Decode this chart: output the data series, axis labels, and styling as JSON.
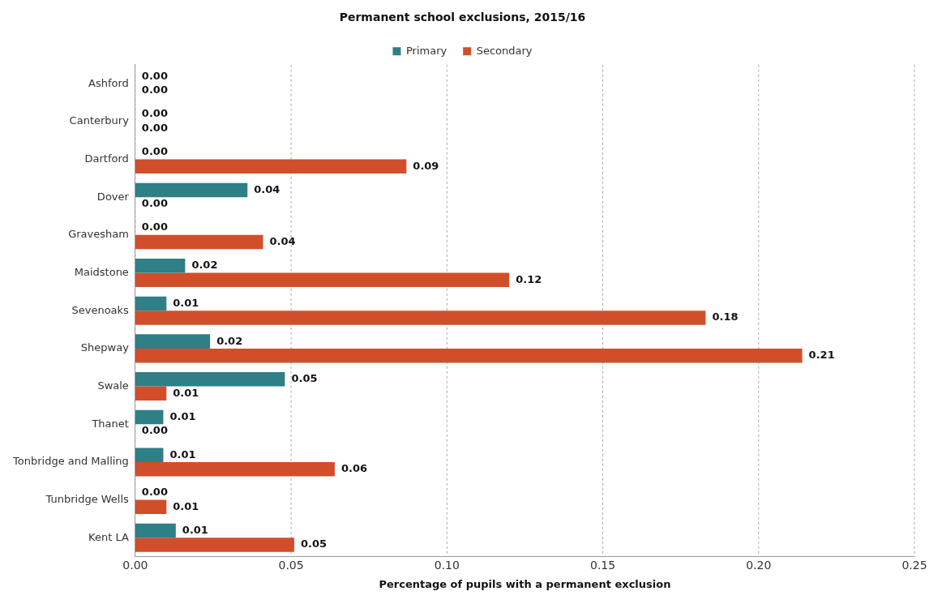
{
  "chart_data": {
    "type": "bar",
    "orientation": "horizontal",
    "title": "Permanent school exclusions, 2015/16",
    "xlabel": "Percentage of pupils with a permanent exclusion",
    "categories": [
      "Ashford",
      "Canterbury",
      "Dartford",
      "Dover",
      "Gravesham",
      "Maidstone",
      "Sevenoaks",
      "Shepway",
      "Swale",
      "Thanet",
      "Tonbridge and Malling",
      "Tunbridge Wells",
      "Kent LA"
    ],
    "series": [
      {
        "name": "Primary",
        "color": "#2e7f86",
        "values": [
          0,
          0,
          0,
          0.036,
          0,
          0.016,
          0.01,
          0.024,
          0.048,
          0.009,
          0.009,
          0,
          0.013
        ],
        "value_labels": [
          "0.00",
          "0.00",
          "0.00",
          "0.04",
          "0.00",
          "0.02",
          "0.01",
          "0.02",
          "0.05",
          "0.01",
          "0.01",
          "0.00",
          "0.01"
        ]
      },
      {
        "name": "Secondary",
        "color": "#d24e2b",
        "values": [
          0,
          0,
          0.087,
          0,
          0.041,
          0.12,
          0.183,
          0.214,
          0.01,
          0,
          0.064,
          0.01,
          0.051
        ],
        "value_labels": [
          "0.00",
          "0.00",
          "0.09",
          "0.00",
          "0.04",
          "0.12",
          "0.18",
          "0.21",
          "0.01",
          "0.00",
          "0.06",
          "0.01",
          "0.05"
        ]
      }
    ],
    "xlim": [
      0,
      0.25
    ],
    "xticks": [
      {
        "value": 0,
        "label": "0.00"
      },
      {
        "value": 0.05,
        "label": "0.05"
      },
      {
        "value": 0.1,
        "label": "0.10"
      },
      {
        "value": 0.15,
        "label": "0.15"
      },
      {
        "value": 0.2,
        "label": "0.20"
      },
      {
        "value": 0.25,
        "label": "0.25"
      }
    ],
    "grid": "x",
    "legend": "top"
  }
}
